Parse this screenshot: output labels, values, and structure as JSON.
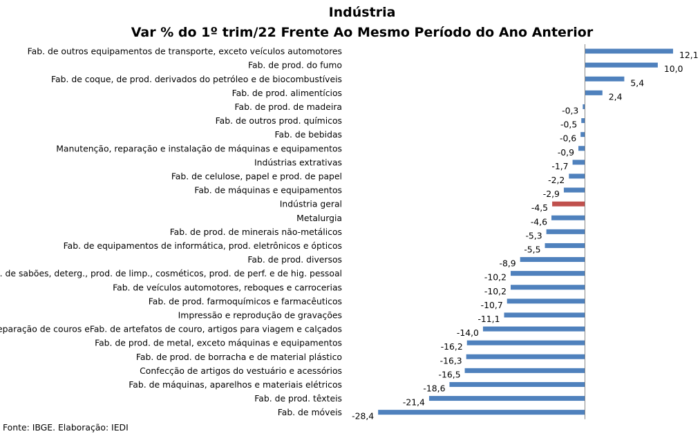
{
  "chart_data": {
    "type": "bar",
    "orientation": "horizontal",
    "title": "Indústria",
    "subtitle": "Var % do 1º trim/22 Frente Ao Mesmo Período do Ano Anterior",
    "categories": [
      "Fab. de outros equipamentos de transporte, exceto veículos automotores",
      "Fab. de prod. do fumo",
      "Fab. de coque, de prod. derivados do petróleo e de biocombustíveis",
      "Fab. de prod. alimentícios",
      "Fab. de prod. de madeira",
      "Fab. de outros prod. químicos",
      "Fab. de bebidas",
      "Manutenção, reparação e instalação de máquinas e equipamentos",
      "Indústrias extrativas",
      "Fab. de celulose, papel e prod. de papel",
      "Fab. de máquinas e equipamentos",
      "Indústria geral",
      "Metalurgia",
      "Fab. de prod. de minerais não-metálicos",
      "Fab. de equipamentos de informática, prod. eletrônicos e ópticos",
      "Fab. de prod. diversos",
      "Fab. de sabões, deterg., prod. de limp., cosméticos, prod. de perf. e de hig. pessoal",
      "Fab. de veículos automotores, reboques e carrocerias",
      "Fab. de prod. farmoquímicos e farmacêuticos",
      "Impressão e reprodução de gravações",
      "Preparação de couros eFab. de artefatos de couro, artigos para viagem e calçados",
      "Fab. de prod. de metal, exceto máquinas e equipamentos",
      "Fab. de prod. de borracha e de material plástico",
      "Confecção de artigos do vestuário e acessórios",
      "Fab. de máquinas, aparelhos e materiais elétricos",
      "Fab. de prod. têxteis",
      "Fab. de móveis"
    ],
    "values": [
      12.1,
      10.0,
      5.4,
      2.4,
      -0.3,
      -0.5,
      -0.6,
      -0.9,
      -1.7,
      -2.2,
      -2.9,
      -4.5,
      -4.6,
      -5.3,
      -5.5,
      -8.9,
      -10.2,
      -10.2,
      -10.7,
      -11.1,
      -14.0,
      -16.2,
      -16.3,
      -16.5,
      -18.6,
      -21.4,
      -28.4
    ],
    "value_labels": [
      "12,1",
      "10,0",
      "5,4",
      "2,4",
      "-0,3",
      "-0,5",
      "-0,6",
      "-0,9",
      "-1,7",
      "-2,2",
      "-2,9",
      "-4,5",
      "-4,6",
      "-5,3",
      "-5,5",
      "-8,9",
      "-10,2",
      "-10,2",
      "-10,7",
      "-11,1",
      "-14,0",
      "-16,2",
      "-16,3",
      "-16,5",
      "-18,6",
      "-21,4",
      "-28,4"
    ],
    "highlight": "Indústria geral",
    "colors": {
      "bar": "#4F81BD",
      "highlight": "#C0504D"
    },
    "xlim": [
      -28.4,
      12.1
    ],
    "grid": false,
    "legend": "none"
  },
  "source": "Fonte: IBGE. Elaboração: IEDI"
}
